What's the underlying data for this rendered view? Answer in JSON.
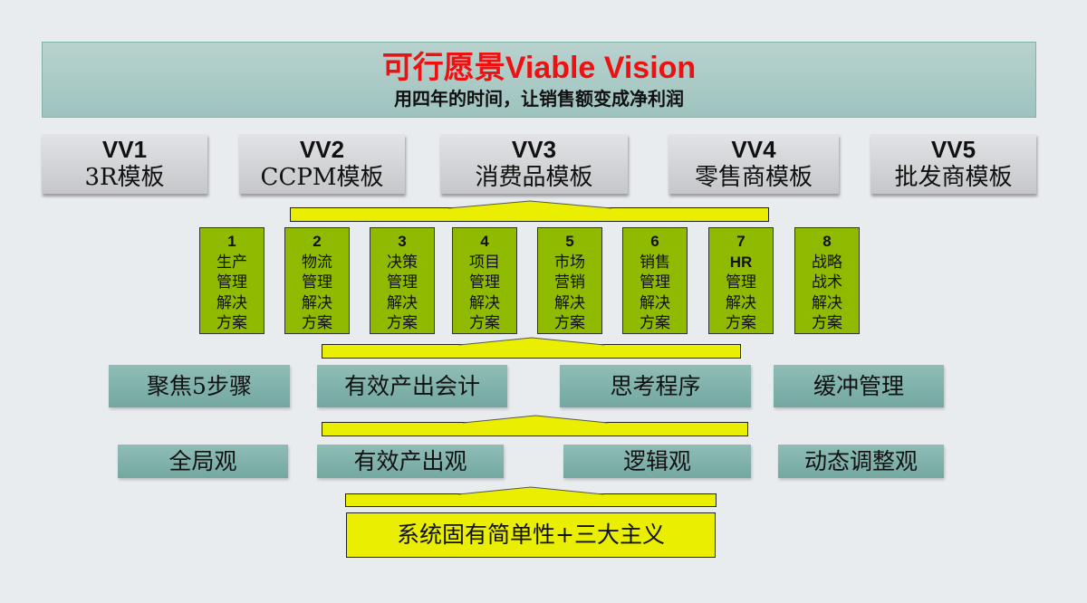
{
  "header": {
    "title": "可行愿景Viable Vision",
    "subtitle": "用四年的时间，让销售额变成净利润"
  },
  "templates": [
    {
      "code": "VV1",
      "name": "3R模板"
    },
    {
      "code": "VV2",
      "name": "CCPM模板"
    },
    {
      "code": "VV3",
      "name": "消费品模板"
    },
    {
      "code": "VV4",
      "name": "零售商模板"
    },
    {
      "code": "VV5",
      "name": "批发商模板"
    }
  ],
  "solutions": [
    {
      "num": "1",
      "lines": [
        "生产",
        "管理",
        "解决",
        "方案"
      ]
    },
    {
      "num": "2",
      "lines": [
        "物流",
        "管理",
        "解决",
        "方案"
      ]
    },
    {
      "num": "3",
      "lines": [
        "决策",
        "管理",
        "解决",
        "方案"
      ]
    },
    {
      "num": "4",
      "lines": [
        "项目",
        "管理",
        "解决",
        "方案"
      ]
    },
    {
      "num": "5",
      "lines": [
        "市场",
        "营销",
        "解决",
        "方案"
      ]
    },
    {
      "num": "6",
      "lines": [
        "销售",
        "管理",
        "解决",
        "方案"
      ]
    },
    {
      "num": "7",
      "lines": [
        "HR",
        "管理",
        "解决",
        "方案"
      ]
    },
    {
      "num": "8",
      "lines": [
        "战略",
        "战术",
        "解决",
        "方案"
      ]
    }
  ],
  "tools": [
    "聚焦5步骤",
    "有效产出会计",
    "思考程序",
    "缓冲管理"
  ],
  "views": [
    "全局观",
    "有效产出观",
    "逻辑观",
    "动态调整观"
  ],
  "foundation": "系统固有简单性+三大主义",
  "colors": {
    "title": "#ee1111",
    "solution": "#8fba00",
    "arrow": "#eaee00",
    "teal": "#80b2ab"
  }
}
